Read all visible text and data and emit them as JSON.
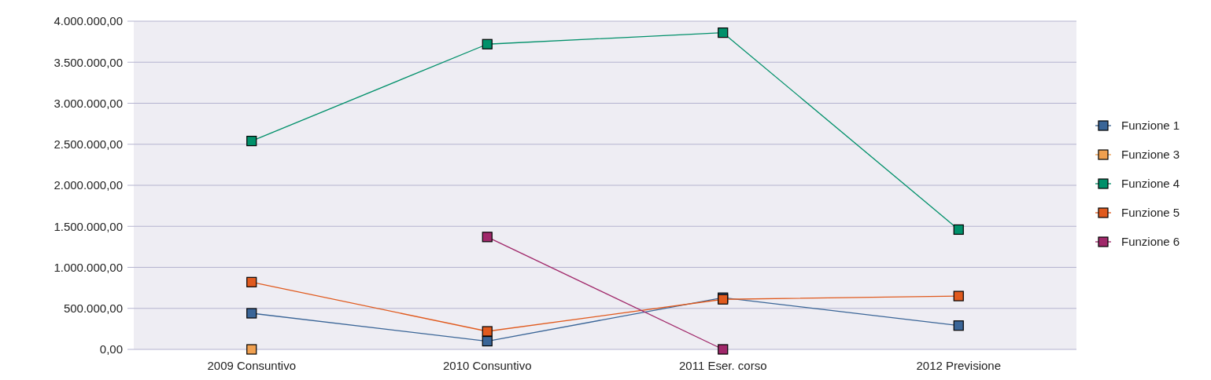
{
  "chart_data": {
    "type": "line",
    "categories": [
      "2009 Consuntivo",
      "2010 Consuntivo",
      "2011 Eser. corso",
      "2012 Previsione"
    ],
    "series": [
      {
        "name": "Funzione 1",
        "color": "#3a6597",
        "values": [
          440000,
          100000,
          630000,
          290000
        ]
      },
      {
        "name": "Funzione 3",
        "color": "#f0a050",
        "values": [
          0,
          null,
          null,
          null
        ]
      },
      {
        "name": "Funzione 4",
        "color": "#00906a",
        "values": [
          2540000,
          3720000,
          3860000,
          1460000
        ]
      },
      {
        "name": "Funzione 5",
        "color": "#e05a1e",
        "values": [
          820000,
          220000,
          610000,
          650000
        ]
      },
      {
        "name": "Funzione 6",
        "color": "#a0286a",
        "values": [
          null,
          1370000,
          0,
          null
        ]
      }
    ],
    "ylim": [
      0,
      4000000
    ],
    "yticks": [
      {
        "value": 0,
        "label": "0,00"
      },
      {
        "value": 500000,
        "label": "500.000,00"
      },
      {
        "value": 1000000,
        "label": "1.000.000,00"
      },
      {
        "value": 1500000,
        "label": "1.500.000,00"
      },
      {
        "value": 2000000,
        "label": "2.000.000,00"
      },
      {
        "value": 2500000,
        "label": "2.500.000,00"
      },
      {
        "value": 3000000,
        "label": "3.000.000,00"
      },
      {
        "value": 3500000,
        "label": "3.500.000,00"
      },
      {
        "value": 4000000,
        "label": "4.000.000,00"
      }
    ],
    "grid": "y",
    "legend": "right",
    "marker": "square",
    "line_style": "solid"
  }
}
